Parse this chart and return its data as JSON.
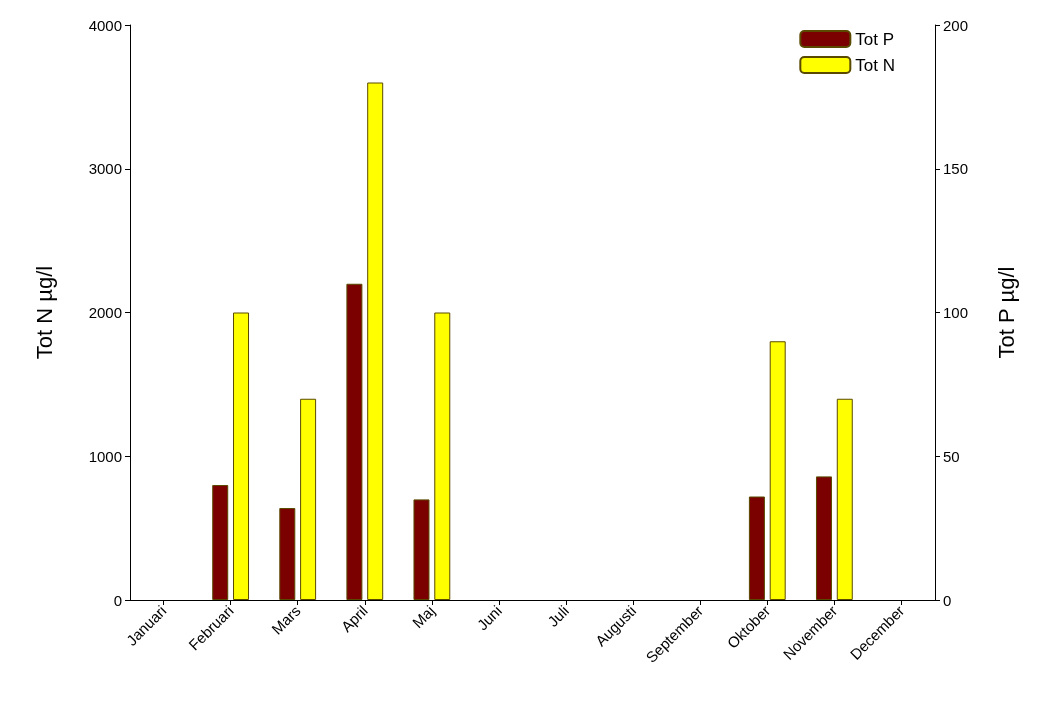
{
  "chart_data": {
    "type": "bar",
    "ylabel": "Tot N µg/l",
    "y2label": "Tot P µg/l",
    "categories": [
      "Januari",
      "Februari",
      "Mars",
      "April",
      "Maj",
      "Juni",
      "Juli",
      "Augusti",
      "September",
      "Oktober",
      "November",
      "December"
    ],
    "series": [
      {
        "name": "Tot P",
        "color": "#7b0000",
        "axis": "y2",
        "values": [
          null,
          40,
          32,
          110,
          35,
          null,
          null,
          null,
          null,
          36,
          43,
          null
        ]
      },
      {
        "name": "Tot N",
        "color": "#ffff00",
        "values": [
          null,
          2000,
          1400,
          3600,
          2000,
          null,
          null,
          null,
          null,
          1800,
          1400,
          null
        ]
      }
    ],
    "ylim": [
      0,
      4000
    ],
    "yticks": [
      0,
      1000,
      2000,
      3000,
      4000
    ],
    "y2lim": [
      0,
      200
    ],
    "y2ticks": [
      0,
      50,
      100,
      150,
      200
    ],
    "grid": false,
    "legend": "top right"
  }
}
